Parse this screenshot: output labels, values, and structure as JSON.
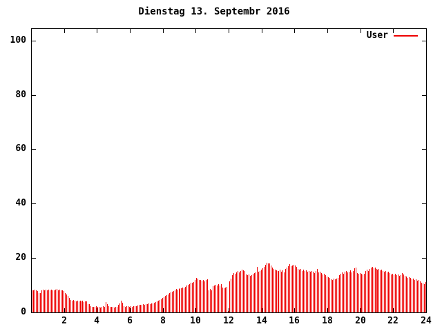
{
  "chart_data": {
    "type": "bar",
    "title": "Dienstag 13. Septembr 2016",
    "xlabel": "",
    "ylabel": "",
    "grid": false,
    "legend_position": "top-right-inside",
    "axis_color": "#000000",
    "background_color": "#ffffff",
    "xlim": [
      0,
      24
    ],
    "ylim": [
      0,
      104.5
    ],
    "xticks": [
      2,
      4,
      6,
      8,
      10,
      12,
      14,
      16,
      18,
      20,
      22,
      24
    ],
    "yticks": [
      0,
      20,
      40,
      60,
      80,
      100
    ],
    "x": {
      "start_hour": 0,
      "end_hour": 24,
      "step_minutes": 5
    },
    "series": [
      {
        "name": "User",
        "color": "#ee0000",
        "values": [
          8.2,
          8.0,
          8.3,
          8.1,
          7.9,
          7.0,
          7.2,
          8.2,
          8.4,
          8.1,
          8.3,
          8.2,
          8.3,
          8.1,
          8.4,
          8.2,
          8.0,
          8.3,
          8.5,
          8.2,
          8.4,
          8.1,
          8.0,
          7.8,
          7.0,
          6.5,
          6.0,
          5.2,
          4.6,
          4.3,
          4.5,
          4.2,
          4.0,
          4.3,
          4.1,
          4.2,
          4.0,
          4.2,
          3.9,
          4.1,
          4.0,
          3.0,
          3.1,
          2.2,
          2.0,
          2.1,
          2.0,
          2.2,
          2.0,
          2.1,
          1.9,
          2.0,
          2.2,
          2.0,
          3.7,
          3.0,
          2.4,
          2.1,
          2.0,
          2.1,
          1.9,
          2.0,
          2.1,
          2.8,
          3.2,
          4.4,
          3.6,
          2.2,
          2.1,
          2.3,
          2.2,
          2.0,
          2.2,
          2.1,
          2.3,
          2.4,
          2.2,
          2.5,
          2.8,
          2.9,
          2.7,
          3.0,
          2.9,
          3.1,
          3.0,
          3.2,
          3.1,
          3.3,
          3.2,
          3.5,
          3.8,
          4.0,
          4.3,
          4.5,
          4.8,
          5.2,
          5.6,
          6.0,
          6.4,
          6.7,
          7.0,
          7.3,
          7.6,
          7.9,
          8.2,
          8.6,
          8.4,
          8.7,
          8.8,
          9.0,
          9.2,
          9.0,
          9.4,
          9.8,
          10.2,
          10.5,
          11.0,
          10.8,
          11.2,
          12.0,
          12.8,
          12.5,
          11.8,
          12.0,
          11.6,
          11.9,
          11.5,
          11.8,
          12.2,
          8.2,
          8.5,
          8.0,
          9.6,
          9.8,
          10.2,
          10.0,
          10.4,
          9.9,
          10.3,
          9.2,
          9.0,
          9.1,
          9.4,
          0.4,
          11.5,
          12.5,
          13.8,
          14.5,
          14.2,
          14.8,
          15.1,
          14.7,
          15.3,
          15.8,
          15.5,
          15.2,
          14.0,
          13.6,
          13.9,
          13.4,
          13.8,
          14.1,
          14.4,
          14.8,
          16.8,
          14.9,
          15.2,
          15.6,
          16.2,
          16.8,
          17.4,
          18.3,
          17.9,
          18.1,
          17.3,
          16.6,
          16.0,
          15.7,
          15.4,
          15.1,
          15.3,
          15.6,
          14.9,
          15.4,
          14.6,
          15.9,
          16.4,
          17.1,
          17.8,
          16.9,
          17.3,
          17.6,
          17.2,
          16.7,
          16.1,
          15.6,
          15.9,
          15.3,
          15.7,
          15.1,
          15.4,
          14.9,
          15.2,
          15.0,
          15.3,
          14.9,
          14.5,
          15.1,
          16.1,
          14.7,
          15.0,
          14.4,
          13.9,
          14.2,
          13.6,
          13.3,
          13.0,
          12.6,
          12.3,
          12.0,
          12.4,
          12.1,
          12.5,
          12.8,
          13.8,
          14.3,
          14.6,
          14.2,
          14.9,
          15.2,
          14.6,
          15.0,
          15.4,
          14.8,
          15.1,
          16.2,
          16.4,
          14.5,
          14.1,
          14.4,
          14.2,
          13.9,
          14.3,
          15.1,
          15.6,
          15.3,
          15.9,
          16.4,
          16.8,
          16.3,
          16.6,
          16.1,
          15.7,
          16.1,
          15.4,
          15.8,
          15.2,
          14.9,
          15.3,
          14.7,
          15.0,
          14.4,
          13.9,
          14.1,
          13.8,
          14.2,
          13.6,
          14.0,
          13.4,
          13.7,
          14.4,
          14.0,
          13.5,
          13.1,
          12.8,
          13.0,
          12.6,
          12.2,
          12.4,
          11.9,
          12.1,
          11.6,
          11.8,
          11.3,
          11.0,
          10.7,
          10.5,
          11.2
        ]
      }
    ]
  }
}
